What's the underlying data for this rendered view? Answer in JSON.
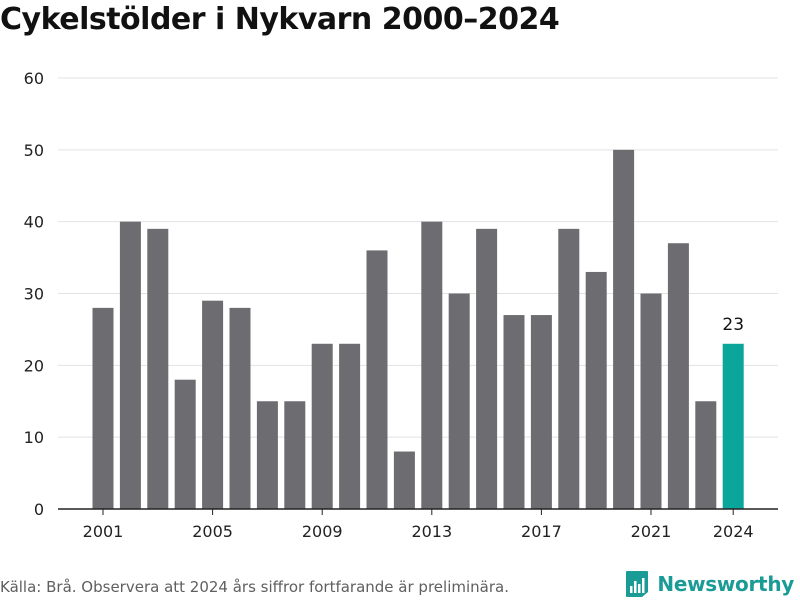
{
  "title": "Cykelstölder i Nykvarn 2000–2024",
  "footer": {
    "source": "Källa: Brå. Observera att 2024 års siffror fortfarande är preliminära."
  },
  "brand": {
    "name": "Newsworthy",
    "icon": "newsworthy-logo-icon",
    "color": "#1a9b96"
  },
  "chart_data": {
    "type": "bar",
    "title": "Cykelstölder i Nykvarn 2000–2024",
    "xlabel": "",
    "ylabel": "",
    "categories": [
      "2001",
      "2002",
      "2003",
      "2004",
      "2005",
      "2006",
      "2007",
      "2008",
      "2009",
      "2010",
      "2011",
      "2012",
      "2013",
      "2014",
      "2015",
      "2016",
      "2017",
      "2018",
      "2019",
      "2020",
      "2021",
      "2022",
      "2023",
      "2024"
    ],
    "values": [
      28,
      40,
      39,
      18,
      29,
      28,
      15,
      15,
      23,
      23,
      36,
      8,
      40,
      30,
      39,
      27,
      27,
      39,
      33,
      50,
      30,
      37,
      15,
      23
    ],
    "xticks": [
      "2001",
      "2005",
      "2009",
      "2013",
      "2017",
      "2021",
      "2024"
    ],
    "yticks": [
      0,
      10,
      20,
      30,
      40,
      50,
      60
    ],
    "ylim": [
      0,
      60
    ],
    "grid": true,
    "legend": "none",
    "highlight": {
      "category": "2024",
      "label": "23"
    },
    "colors": {
      "bar": "#6d6c71",
      "highlight": "#0ba69b",
      "grid": "#e2e2e2",
      "axis": "#222222"
    }
  }
}
